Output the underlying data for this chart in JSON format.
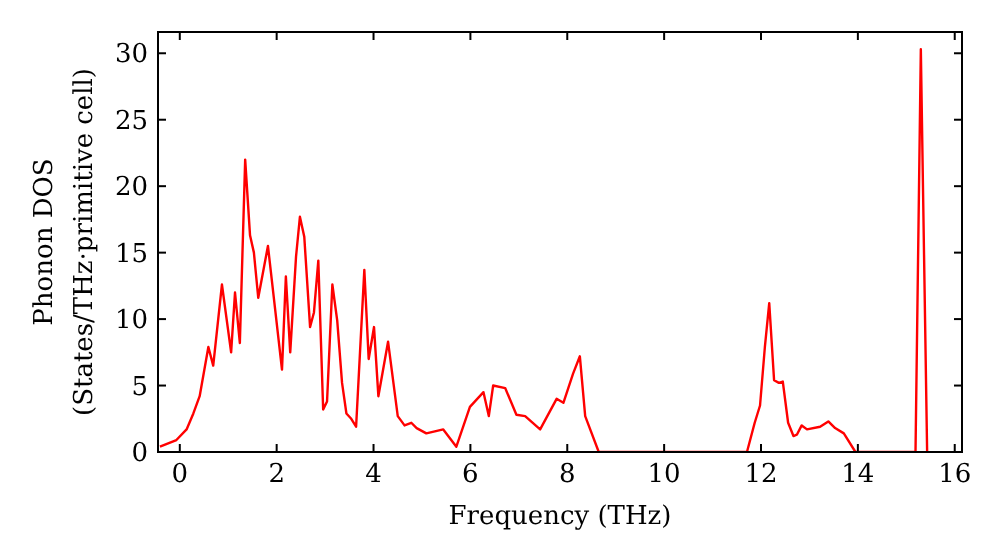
{
  "chart_data": {
    "type": "line",
    "xlabel": "Frequency (THz)",
    "ylabel": "Phonon DOS\n(States/THz·primitive cell)",
    "xlim": [
      -0.45,
      16.15
    ],
    "ylim": [
      0,
      31.6
    ],
    "xticks": [
      0,
      2,
      4,
      6,
      8,
      10,
      12,
      14,
      16
    ],
    "yticks": [
      0,
      5,
      10,
      15,
      20,
      25,
      30
    ],
    "grid": false,
    "marker": "none",
    "line_style": "solid",
    "series": [
      {
        "color": "#ff0000",
        "x": [
          -0.41,
          -0.07,
          0.14,
          0.28,
          0.41,
          0.59,
          0.69,
          0.87,
          1.06,
          1.14,
          1.24,
          1.35,
          1.45,
          1.53,
          1.62,
          1.82,
          2.11,
          2.19,
          2.28,
          2.4,
          2.48,
          2.57,
          2.69,
          2.77,
          2.86,
          2.96,
          3.04,
          3.15,
          3.25,
          3.35,
          3.44,
          3.54,
          3.64,
          3.81,
          3.9,
          4.01,
          4.1,
          4.3,
          4.5,
          4.64,
          4.78,
          4.89,
          5.09,
          5.44,
          5.71,
          5.99,
          6.27,
          6.38,
          6.47,
          6.72,
          6.95,
          7.13,
          7.44,
          7.78,
          7.92,
          8.12,
          8.26,
          8.37,
          8.65,
          11.71,
          11.87,
          11.98,
          12.08,
          12.17,
          12.27,
          12.37,
          12.45,
          12.56,
          12.67,
          12.74,
          12.84,
          12.95,
          13.22,
          13.39,
          13.53,
          13.71,
          13.95,
          15.19,
          15.3,
          15.43
        ],
        "values": [
          0.4,
          0.9,
          1.7,
          2.9,
          4.2,
          7.9,
          6.5,
          12.6,
          7.5,
          12,
          8.2,
          22,
          16.3,
          15,
          11.6,
          15.5,
          6.2,
          13.2,
          7.5,
          14.7,
          17.7,
          16.2,
          9.4,
          10.5,
          14.4,
          3.2,
          3.8,
          12.6,
          9.9,
          5.2,
          2.9,
          2.5,
          1.9,
          13.7,
          7,
          9.4,
          4.2,
          8.3,
          2.7,
          2,
          2.2,
          1.8,
          1.4,
          1.7,
          0.4,
          3.4,
          4.5,
          2.7,
          5,
          4.8,
          2.8,
          2.7,
          1.7,
          4,
          3.7,
          5.9,
          7.2,
          2.7,
          0,
          0,
          2.2,
          3.5,
          7.9,
          11.2,
          5.4,
          5.2,
          5.3,
          2.2,
          1.2,
          1.3,
          2,
          1.7,
          1.9,
          2.3,
          1.8,
          1.4,
          0,
          0,
          30.3,
          0
        ]
      }
    ]
  }
}
